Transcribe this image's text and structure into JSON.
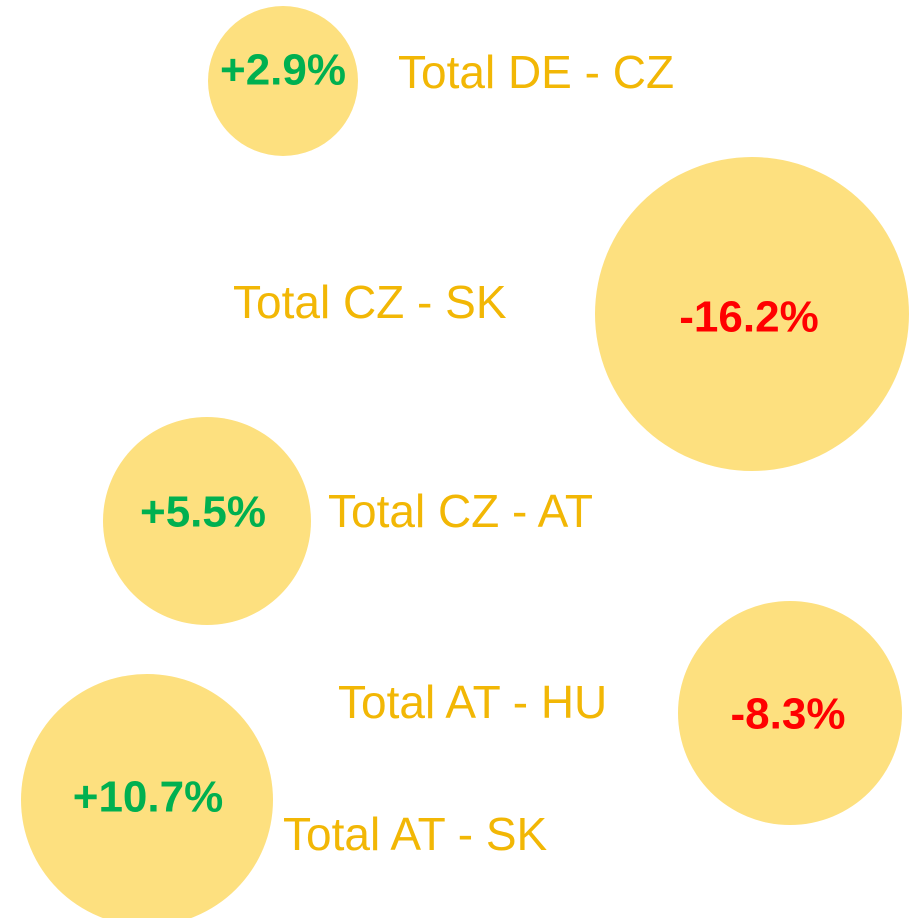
{
  "items": [
    {
      "change": "+2.9%",
      "label": "Total DE - CZ"
    },
    {
      "change": "-16.2%",
      "label": "Total CZ - SK"
    },
    {
      "change": "+5.5%",
      "label": "Total CZ - AT"
    },
    {
      "change": "-8.3%",
      "label": "Total AT - HU"
    },
    {
      "change": "+10.7%",
      "label": "Total AT - SK"
    }
  ]
}
